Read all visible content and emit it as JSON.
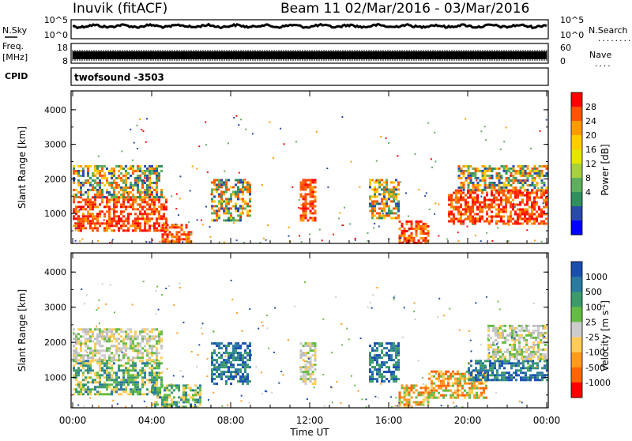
{
  "header": {
    "station": "Inuvik (fitACF)",
    "beam_info": "Beam 11  02/Mar/2016 - 03/Mar/2016"
  },
  "left_labels": {
    "nsky": "N.Sky",
    "freq": "Freq.",
    "freq_unit": "[MHz]",
    "cpid": "CPID"
  },
  "right_labels": {
    "nsearch": "N.Search",
    "nave": "Nave",
    "nsearch_marker": "........",
    "nave_marker": "...."
  },
  "noise_panel": {
    "left_ticks": [
      "10^5",
      "10^0"
    ],
    "right_ticks": [
      "10^5",
      "10^0"
    ]
  },
  "freq_panel": {
    "left_ticks": [
      "18",
      "8"
    ],
    "right_ticks": [
      "60",
      "0"
    ]
  },
  "cpid_text": "twofsound  -3503",
  "chart_data": [
    {
      "type": "heatmap",
      "name": "power",
      "xlabel": "",
      "ylabel": "Slant Range [km]",
      "x_ticks": [
        "00:00",
        "04:00",
        "08:00",
        "12:00",
        "16:00",
        "20:00",
        "00:00"
      ],
      "xlim_hours": [
        0,
        24
      ],
      "y_ticks": [
        1000,
        2000,
        3000,
        4000
      ],
      "ylim": [
        180,
        4500
      ],
      "colorbar": {
        "label": "Power [dB]",
        "ticks": [
          "28",
          "24",
          "20",
          "16",
          "12",
          "8",
          "4"
        ],
        "colors": [
          "#ff0000",
          "#ff5500",
          "#ff9900",
          "#ffcc00",
          "#e5e500",
          "#a8d040",
          "#5faf5f",
          "#2f8f5f",
          "#2a4aa8",
          "#0000ff"
        ]
      },
      "echo_regions": [
        {
          "t0": 0.0,
          "t1": 4.8,
          "r0": 500,
          "r1": 1500,
          "level": "high"
        },
        {
          "t0": 0.0,
          "t1": 4.5,
          "r0": 1500,
          "r1": 2400,
          "level": "mid"
        },
        {
          "t0": 4.5,
          "t1": 6.0,
          "r0": 180,
          "r1": 700,
          "level": "high"
        },
        {
          "t0": 7.0,
          "t1": 9.0,
          "r0": 800,
          "r1": 2000,
          "level": "mid"
        },
        {
          "t0": 11.5,
          "t1": 12.3,
          "r0": 800,
          "r1": 2000,
          "level": "high"
        },
        {
          "t0": 15.0,
          "t1": 16.5,
          "r0": 900,
          "r1": 2000,
          "level": "mid"
        },
        {
          "t0": 16.5,
          "t1": 18.0,
          "r0": 180,
          "r1": 800,
          "level": "high"
        },
        {
          "t0": 19.0,
          "t1": 24.0,
          "r0": 700,
          "r1": 1700,
          "level": "high"
        },
        {
          "t0": 19.5,
          "t1": 24.0,
          "r0": 1700,
          "r1": 2400,
          "level": "mid"
        }
      ]
    },
    {
      "type": "heatmap",
      "name": "velocity",
      "xlabel": "Time UT",
      "ylabel": "Slant Range [km]",
      "x_ticks": [
        "00:00",
        "04:00",
        "08:00",
        "12:00",
        "16:00",
        "20:00",
        "00:00"
      ],
      "xlim_hours": [
        0,
        24
      ],
      "y_ticks": [
        1000,
        2000,
        3000,
        4000
      ],
      "ylim": [
        180,
        4500
      ],
      "colorbar": {
        "label": "Velocity [m s-1]",
        "ticks": [
          "1000",
          "500",
          "100",
          "25",
          "-25",
          "-100",
          "-500",
          "-1000"
        ],
        "colors": [
          "#1a4fb0",
          "#2a7aa0",
          "#3c9a6a",
          "#66bb44",
          "#cccccc",
          "#ffcc55",
          "#ff9922",
          "#ff6600",
          "#ff0000"
        ]
      },
      "echo_regions": [
        {
          "t0": 0.0,
          "t1": 4.5,
          "r0": 500,
          "r1": 1500,
          "level": "green"
        },
        {
          "t0": 0.0,
          "t1": 4.5,
          "r0": 1500,
          "r1": 2400,
          "level": "grey"
        },
        {
          "t0": 4.0,
          "t1": 6.5,
          "r0": 180,
          "r1": 800,
          "level": "green"
        },
        {
          "t0": 7.0,
          "t1": 9.0,
          "r0": 800,
          "r1": 2000,
          "level": "blue"
        },
        {
          "t0": 11.5,
          "t1": 12.3,
          "r0": 800,
          "r1": 2000,
          "level": "grey"
        },
        {
          "t0": 15.0,
          "t1": 16.5,
          "r0": 900,
          "r1": 2000,
          "level": "blue"
        },
        {
          "t0": 16.5,
          "t1": 18.0,
          "r0": 180,
          "r1": 800,
          "level": "orange"
        },
        {
          "t0": 18.0,
          "t1": 21.0,
          "r0": 400,
          "r1": 1200,
          "level": "orange"
        },
        {
          "t0": 20.0,
          "t1": 24.0,
          "r0": 900,
          "r1": 1500,
          "level": "blue"
        },
        {
          "t0": 21.0,
          "t1": 24.0,
          "r0": 1500,
          "r1": 2500,
          "level": "grey"
        }
      ]
    }
  ]
}
